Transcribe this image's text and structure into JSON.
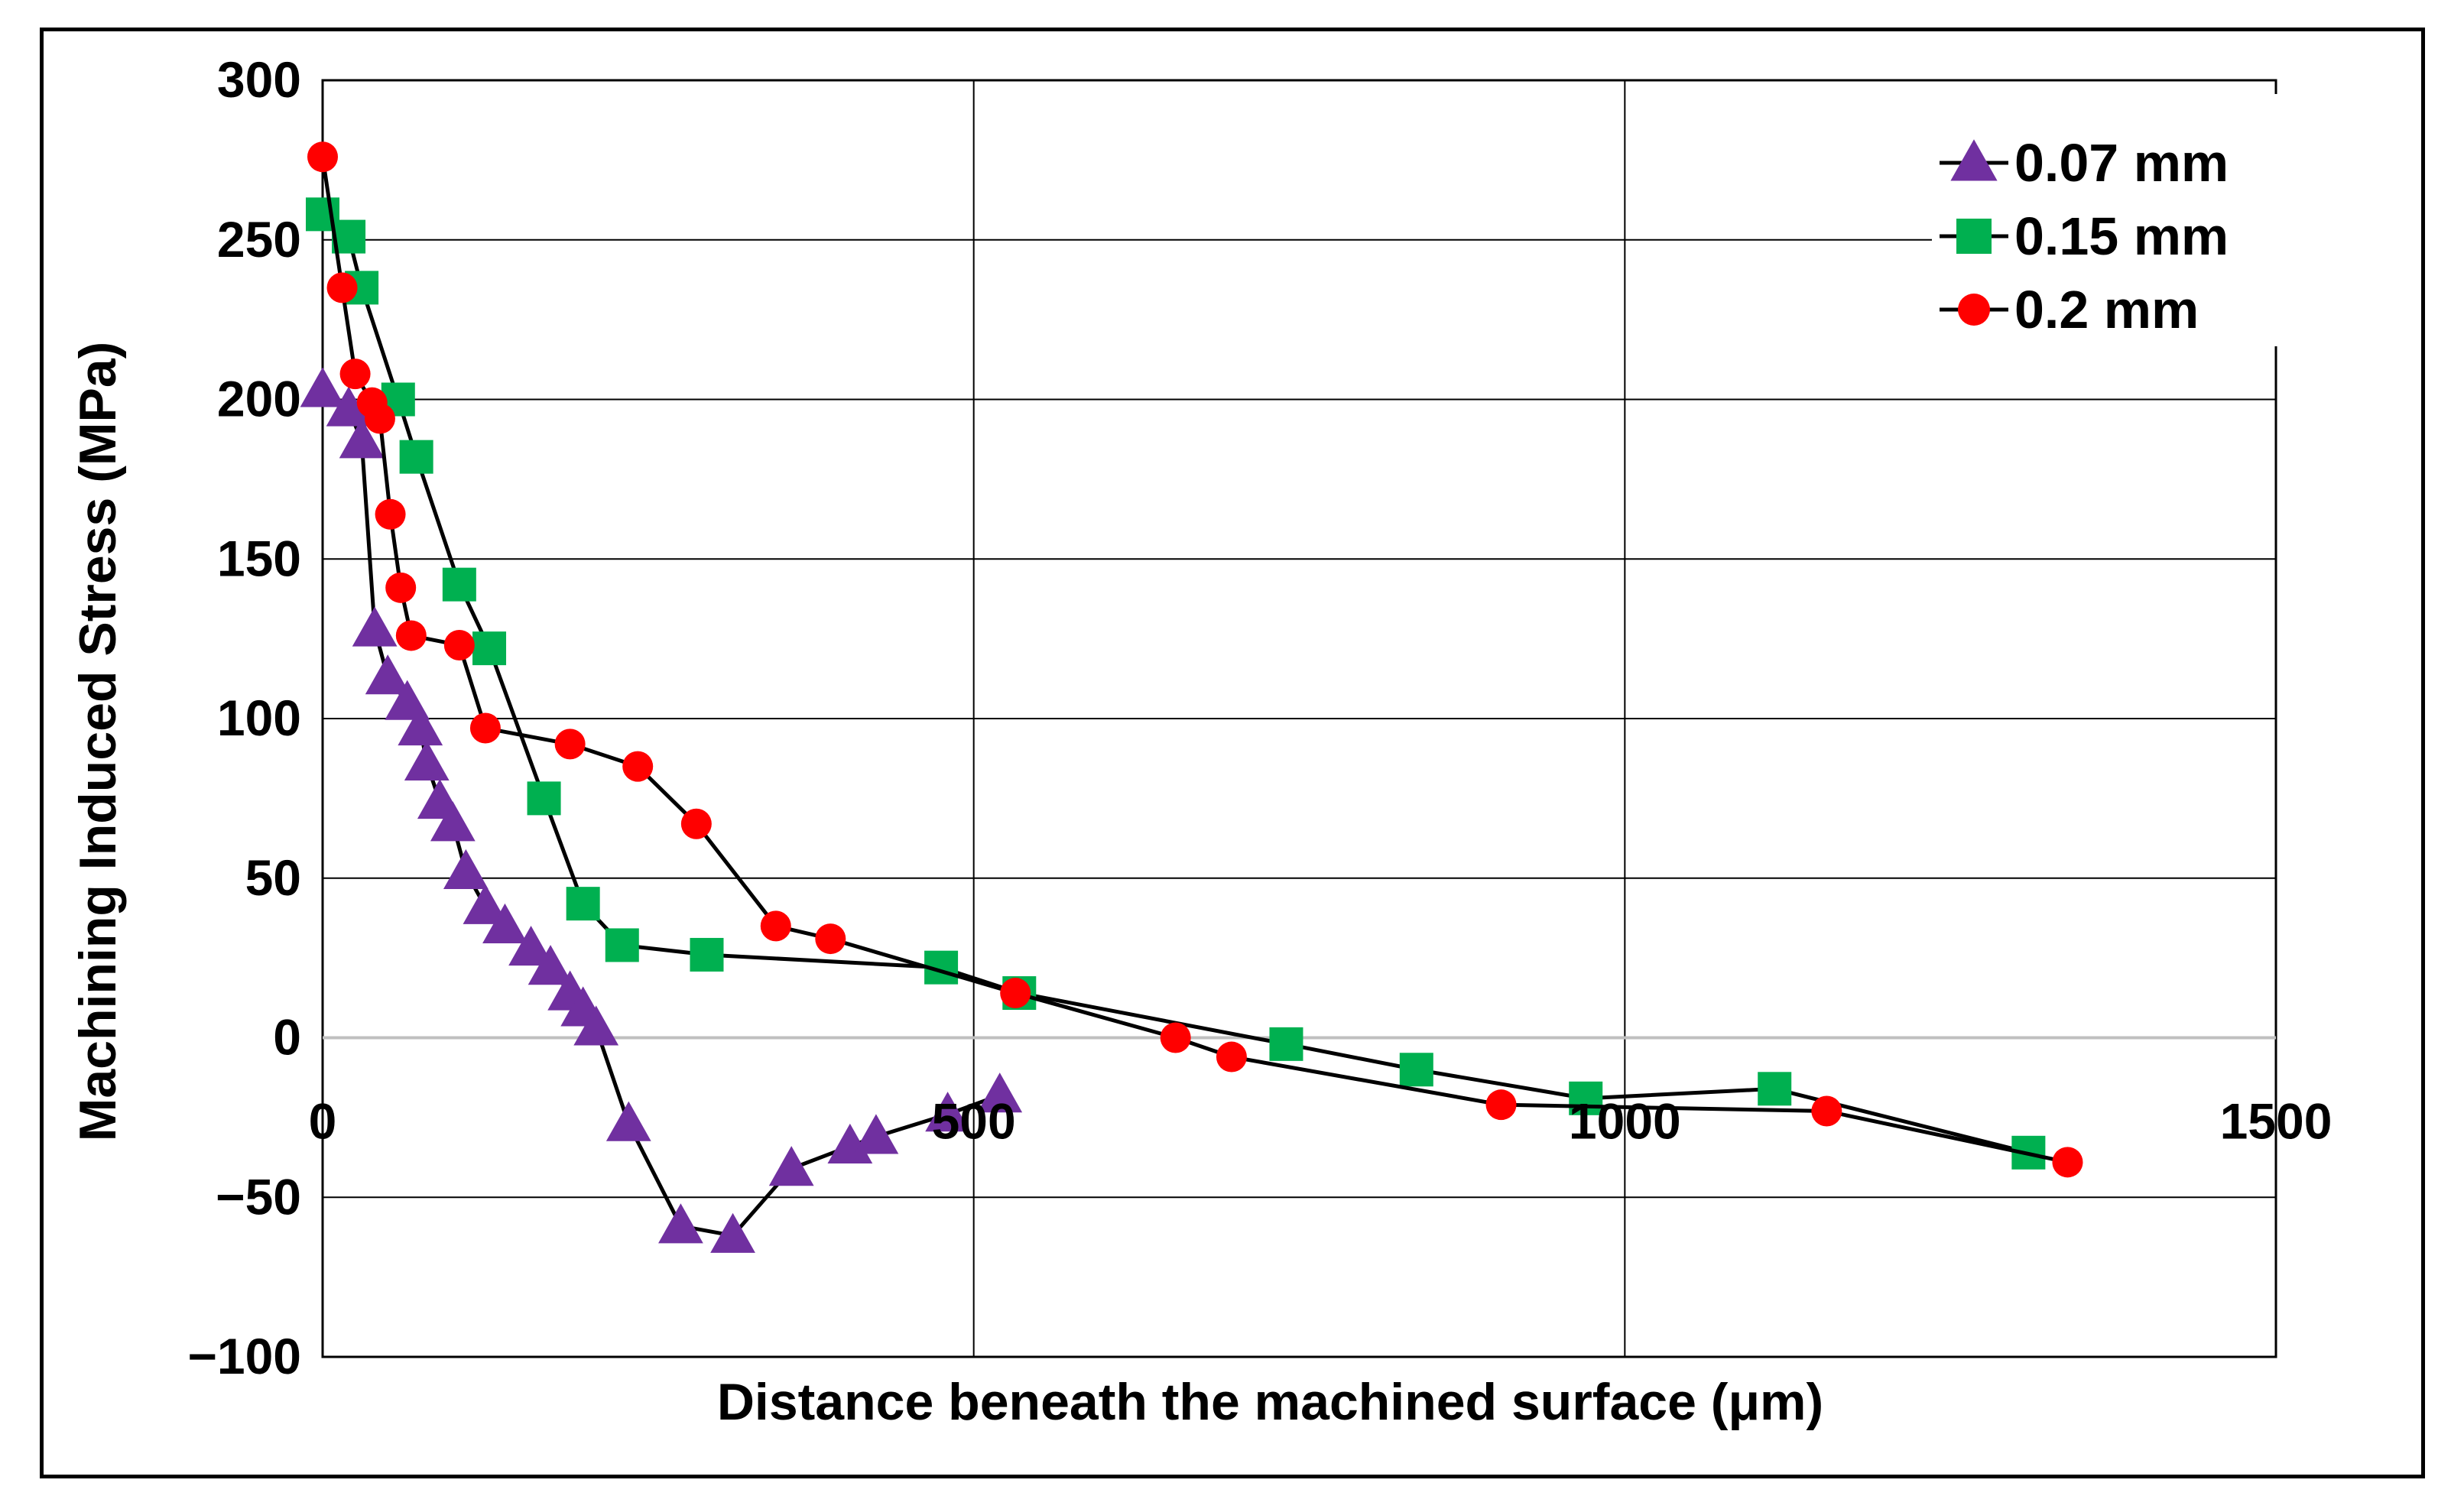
{
  "chart_data": {
    "type": "line",
    "xlabel": "Distance beneath the machined surface (μm)",
    "ylabel": "Machining Induced Stress (MPa)",
    "xlim": [
      0,
      1500
    ],
    "ylim": [
      -100,
      300
    ],
    "xticks": [
      0,
      500,
      1000,
      1500
    ],
    "yticks": [
      -100,
      -50,
      0,
      50,
      100,
      150,
      200,
      250,
      300
    ],
    "grid": true,
    "legend_position": "top-right",
    "series": [
      {
        "name": "0.07 mm",
        "marker": "triangle",
        "color": "#7030A0",
        "x": [
          0,
          20,
          30,
          40,
          50,
          65,
          75,
          80,
          90,
          100,
          110,
          125,
          140,
          160,
          175,
          190,
          200,
          210,
          235,
          275,
          315,
          360,
          405,
          425,
          480,
          520
        ],
        "y": [
          203,
          197,
          187,
          128,
          113,
          105,
          97,
          86,
          74,
          67,
          52,
          41,
          35,
          28,
          22,
          14,
          9,
          3,
          -27,
          -59,
          -62,
          -41,
          -34,
          -31,
          -24,
          -18
        ]
      },
      {
        "name": "0.15 mm",
        "marker": "square",
        "color": "#00B050",
        "x": [
          0,
          20,
          30,
          58,
          72,
          105,
          128,
          170,
          200,
          230,
          295,
          475,
          535,
          740,
          840,
          970,
          1115,
          1310
        ],
        "y": [
          258,
          251,
          235,
          200,
          182,
          142,
          122,
          75,
          42,
          29,
          26,
          22,
          14,
          -2,
          -10,
          -19,
          -16,
          -36
        ]
      },
      {
        "name": "0.2 mm",
        "marker": "circle",
        "color": "#FF0000",
        "x": [
          0,
          15,
          25,
          38,
          44,
          52,
          60,
          68,
          105,
          125,
          190,
          242,
          287,
          348,
          390,
          532,
          655,
          698,
          905,
          1155,
          1340
        ],
        "y": [
          276,
          235,
          208,
          199,
          194,
          164,
          141,
          126,
          123,
          97,
          92,
          85,
          67,
          35,
          31,
          14,
          0,
          -6,
          -21,
          -23,
          -39
        ]
      }
    ]
  }
}
